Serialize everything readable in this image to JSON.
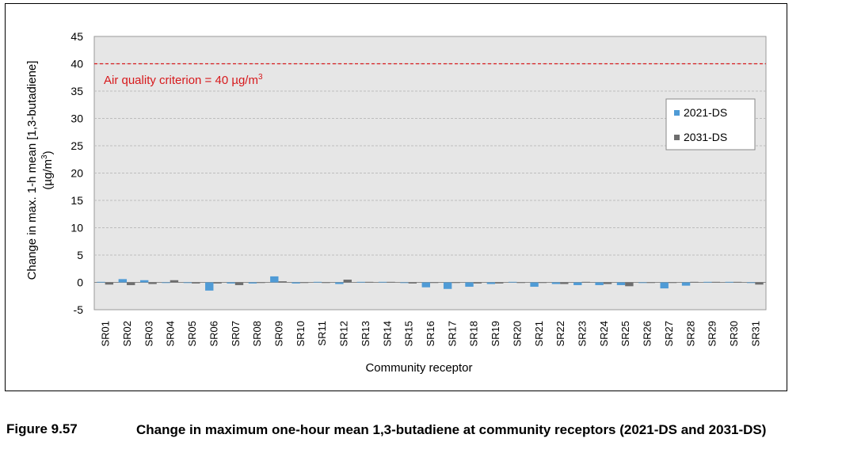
{
  "figure": {
    "label": "Figure 9.57",
    "caption": "Change in maximum one-hour mean 1,3-butadiene at community receptors (2021-DS and 2031-DS)"
  },
  "colors": {
    "series_2021": "#4f9bd6",
    "series_2031": "#6e6e6e",
    "criterion": "#d7191c",
    "plot_bg": "#e6e6e6",
    "grid": "#bdbdbd"
  },
  "chart_data": {
    "type": "bar",
    "title": "",
    "xlabel": "Community receptor",
    "ylabel_line1": "Change in max. 1-h mean [1,3-butadiene]",
    "ylabel_line2_prefix": "(µg/m",
    "ylabel_line2_sup": "3",
    "ylabel_line2_suffix": ")",
    "ylim": [
      -5,
      45
    ],
    "yticks": [
      -5,
      0,
      5,
      10,
      15,
      20,
      25,
      30,
      35,
      40,
      45
    ],
    "grid": true,
    "legend_position": "right",
    "categories": [
      "SR01",
      "SR02",
      "SR03",
      "SR04",
      "SR05",
      "SR06",
      "SR07",
      "SR08",
      "SR09",
      "SR10",
      "SR11",
      "SR12",
      "SR13",
      "SR14",
      "SR15",
      "SR16",
      "SR17",
      "SR18",
      "SR19",
      "SR20",
      "SR21",
      "SR22",
      "SR23",
      "SR24",
      "SR25",
      "SR26",
      "SR27",
      "SR28",
      "SR29",
      "SR30",
      "SR31"
    ],
    "series": [
      {
        "name": "2021-DS",
        "values": [
          0.1,
          0.6,
          0.4,
          -0.1,
          -0.1,
          -1.5,
          -0.2,
          -0.2,
          1.1,
          -0.2,
          0.1,
          -0.3,
          0.1,
          0.1,
          -0.1,
          -0.9,
          -1.2,
          -0.8,
          -0.3,
          0.1,
          -0.8,
          -0.3,
          -0.5,
          -0.5,
          -0.5,
          -0.1,
          -1.1,
          -0.6,
          0.1,
          0.1,
          -0.1
        ]
      },
      {
        "name": "2031-DS",
        "values": [
          -0.4,
          -0.5,
          -0.3,
          0.4,
          -0.2,
          -0.2,
          -0.5,
          -0.1,
          0.2,
          -0.1,
          -0.1,
          0.5,
          0.1,
          0.1,
          -0.2,
          -0.1,
          -0.1,
          -0.2,
          -0.2,
          -0.1,
          -0.1,
          -0.3,
          0.1,
          -0.3,
          -0.7,
          -0.1,
          -0.1,
          0.1,
          0.1,
          0.1,
          -0.4
        ]
      }
    ],
    "reference_line": {
      "value": 40,
      "label_prefix": "Air quality criterion = 40 µg/m",
      "label_sup": "3"
    }
  }
}
